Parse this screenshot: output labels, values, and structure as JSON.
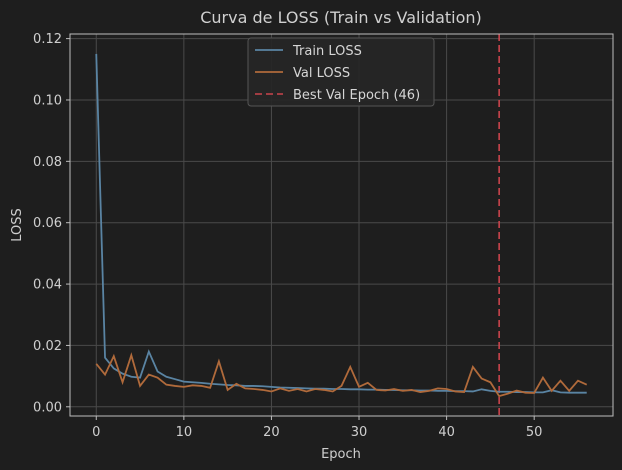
{
  "chart_data": {
    "type": "line",
    "title": "Curva de LOSS (Train vs Validation)",
    "xlabel": "Epoch",
    "ylabel": "LOSS",
    "xlim": [
      -3,
      59
    ],
    "ylim": [
      -0.003,
      0.1215
    ],
    "x_ticks": [
      0,
      10,
      20,
      30,
      40,
      50
    ],
    "y_ticks": [
      0.0,
      0.02,
      0.04,
      0.06,
      0.08,
      0.1,
      0.12
    ],
    "y_tick_labels": [
      "0.00",
      "0.02",
      "0.04",
      "0.06",
      "0.08",
      "0.10",
      "0.12"
    ],
    "grid": true,
    "legend_position": "top-center",
    "colors": {
      "background": "#1e1e1e",
      "grid": "#4a4a4a",
      "axes": "#bdbdbd",
      "train": "#5a84a3",
      "val": "#b06a3b",
      "best": "#c9444c"
    },
    "x": [
      0,
      1,
      2,
      3,
      4,
      5,
      6,
      7,
      8,
      9,
      10,
      11,
      12,
      13,
      14,
      15,
      16,
      17,
      18,
      19,
      20,
      21,
      22,
      23,
      24,
      25,
      26,
      27,
      28,
      29,
      30,
      31,
      32,
      33,
      34,
      35,
      36,
      37,
      38,
      39,
      40,
      41,
      42,
      43,
      44,
      45,
      46,
      47,
      48,
      49,
      50,
      51,
      52,
      53,
      54,
      55,
      56
    ],
    "series": [
      {
        "name": "Train LOSS",
        "values": [
          0.115,
          0.016,
          0.0125,
          0.0108,
          0.0098,
          0.0095,
          0.018,
          0.0115,
          0.0098,
          0.009,
          0.0082,
          0.008,
          0.0078,
          0.0075,
          0.0073,
          0.0071,
          0.007,
          0.0068,
          0.0068,
          0.0067,
          0.0065,
          0.0063,
          0.0062,
          0.0061,
          0.006,
          0.0059,
          0.0059,
          0.0058,
          0.0058,
          0.0057,
          0.0057,
          0.0056,
          0.0056,
          0.0055,
          0.0055,
          0.0054,
          0.0054,
          0.0053,
          0.0053,
          0.0052,
          0.0052,
          0.0051,
          0.0051,
          0.005,
          0.0057,
          0.0052,
          0.0049,
          0.0049,
          0.0048,
          0.0048,
          0.0047,
          0.0047,
          0.0054,
          0.0047,
          0.0046,
          0.0046,
          0.0046
        ]
      },
      {
        "name": "Val LOSS",
        "values": [
          0.014,
          0.0105,
          0.0165,
          0.008,
          0.0168,
          0.0068,
          0.0105,
          0.0095,
          0.0072,
          0.0068,
          0.0065,
          0.007,
          0.0068,
          0.0062,
          0.0148,
          0.0055,
          0.0075,
          0.006,
          0.0058,
          0.0055,
          0.005,
          0.006,
          0.0052,
          0.0058,
          0.005,
          0.0058,
          0.0055,
          0.005,
          0.0068,
          0.013,
          0.0065,
          0.0078,
          0.0055,
          0.0053,
          0.0058,
          0.0052,
          0.0055,
          0.0048,
          0.0052,
          0.006,
          0.0058,
          0.005,
          0.0048,
          0.013,
          0.0092,
          0.008,
          0.0035,
          0.0043,
          0.0053,
          0.0046,
          0.0045,
          0.0095,
          0.0052,
          0.0085,
          0.0052,
          0.0085,
          0.0072
        ]
      }
    ],
    "best_epoch": 46,
    "legend": [
      "Train LOSS",
      "Val LOSS",
      "Best Val Epoch (46)"
    ]
  }
}
